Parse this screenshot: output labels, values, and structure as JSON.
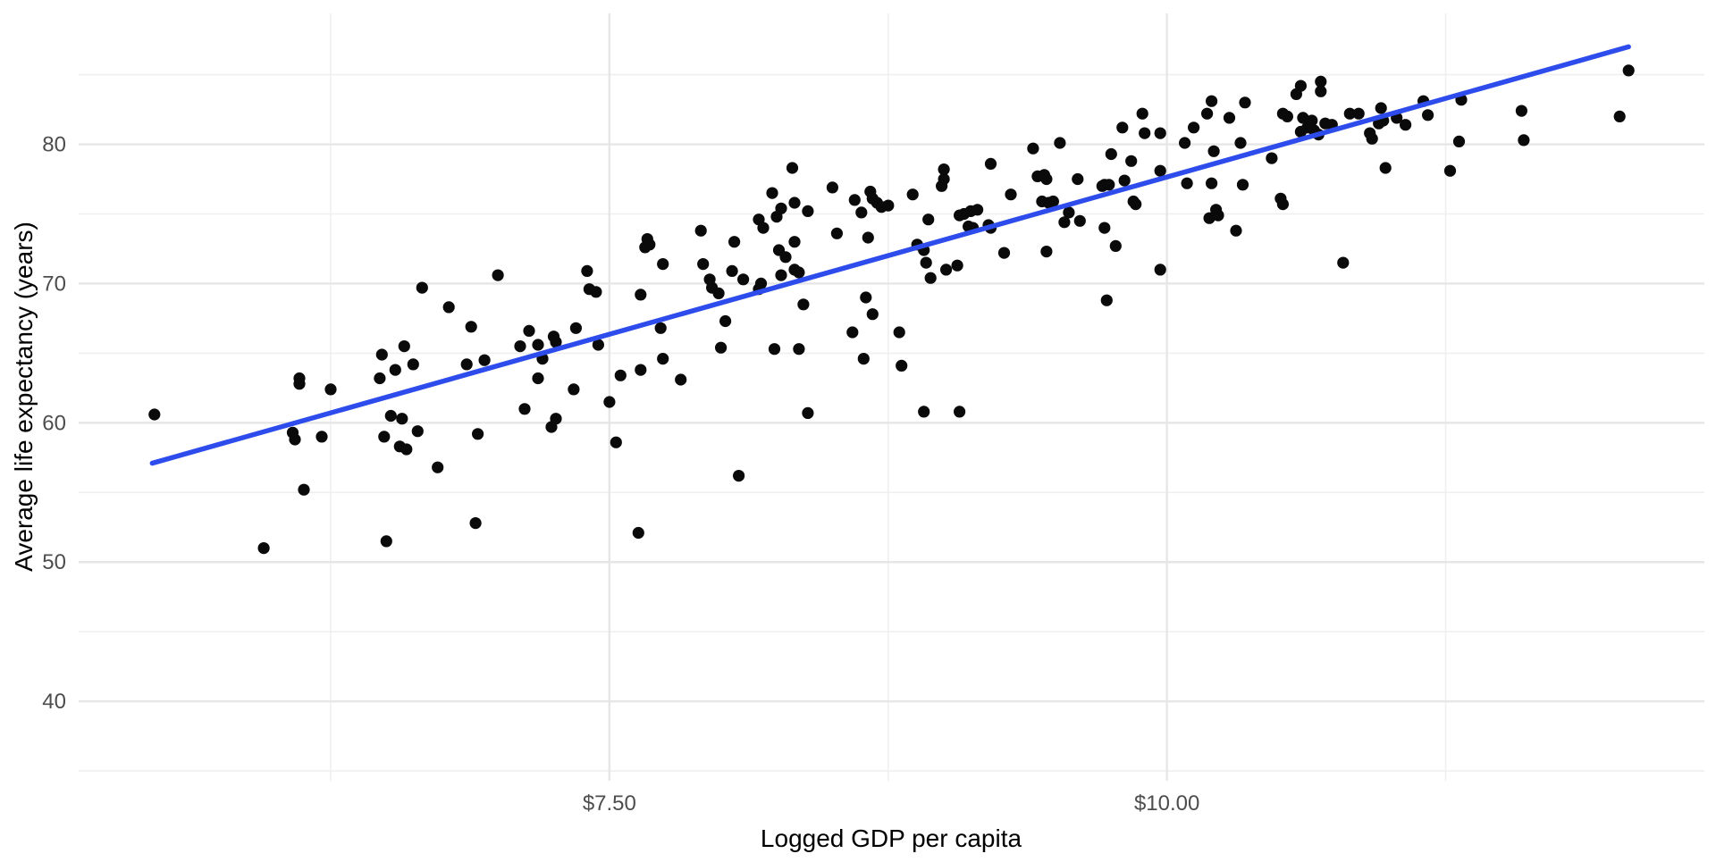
{
  "chart_data": {
    "type": "scatter",
    "title": "",
    "xlabel": "Logged GDP per capita",
    "ylabel": "Average life expectancy (years)",
    "x_domain": [
      5.12,
      12.41
    ],
    "y_domain": [
      34.3,
      89.4
    ],
    "x_ticks": [
      {
        "value": 7.5,
        "label": "$7.50"
      },
      {
        "value": 10.0,
        "label": "$10.00"
      }
    ],
    "x_minor_ticks": [
      6.25,
      8.75,
      11.25
    ],
    "y_ticks": [
      {
        "value": 40,
        "label": "40"
      },
      {
        "value": 50,
        "label": "50"
      },
      {
        "value": 60,
        "label": "60"
      },
      {
        "value": 70,
        "label": "70"
      },
      {
        "value": 80,
        "label": "80"
      }
    ],
    "y_minor_ticks": [
      35,
      45,
      55,
      65,
      75,
      85
    ],
    "grid": true,
    "legend_position": "none",
    "trend_line": {
      "type": "linear",
      "x1": 5.45,
      "y1": 57.1,
      "x2": 12.07,
      "y2": 87.0
    },
    "points": [
      [
        7.0,
        70.6
      ],
      [
        6.66,
        69.7
      ],
      [
        6.78,
        68.3
      ],
      [
        6.88,
        66.9
      ],
      [
        6.58,
        65.5
      ],
      [
        6.48,
        64.9
      ],
      [
        6.62,
        64.2
      ],
      [
        6.54,
        63.8
      ],
      [
        6.86,
        64.2
      ],
      [
        6.94,
        64.5
      ],
      [
        6.47,
        63.2
      ],
      [
        6.11,
        63.2
      ],
      [
        6.11,
        62.8
      ],
      [
        6.25,
        62.4
      ],
      [
        5.46,
        60.6
      ],
      [
        6.52,
        60.5
      ],
      [
        6.57,
        60.3
      ],
      [
        6.08,
        59.3
      ],
      [
        6.09,
        58.8
      ],
      [
        6.21,
        59.0
      ],
      [
        6.64,
        59.4
      ],
      [
        6.49,
        59.0
      ],
      [
        6.56,
        58.3
      ],
      [
        6.59,
        58.1
      ],
      [
        6.91,
        59.2
      ],
      [
        6.73,
        56.8
      ],
      [
        6.13,
        55.2
      ],
      [
        6.9,
        52.8
      ],
      [
        6.5,
        51.5
      ],
      [
        5.95,
        51.0
      ],
      [
        8.32,
        78.3
      ],
      [
        8.23,
        76.5
      ],
      [
        8.5,
        76.9
      ],
      [
        8.33,
        75.8
      ],
      [
        8.67,
        76.6
      ],
      [
        8.68,
        76.1
      ],
      [
        8.6,
        76.0
      ],
      [
        8.7,
        75.8
      ],
      [
        8.72,
        75.5
      ],
      [
        8.75,
        75.6
      ],
      [
        8.27,
        75.4
      ],
      [
        8.25,
        74.8
      ],
      [
        8.63,
        75.1
      ],
      [
        8.39,
        75.2
      ],
      [
        8.17,
        74.6
      ],
      [
        8.19,
        74.0
      ],
      [
        7.91,
        73.8
      ],
      [
        8.06,
        73.0
      ],
      [
        7.67,
        73.2
      ],
      [
        7.68,
        72.8
      ],
      [
        7.66,
        72.6
      ],
      [
        8.52,
        73.6
      ],
      [
        8.66,
        73.3
      ],
      [
        8.33,
        73.0
      ],
      [
        8.26,
        72.4
      ],
      [
        8.29,
        71.9
      ],
      [
        8.27,
        70.6
      ],
      [
        8.33,
        71.0
      ],
      [
        8.35,
        70.8
      ],
      [
        7.74,
        71.4
      ],
      [
        7.92,
        71.4
      ],
      [
        8.05,
        70.9
      ],
      [
        8.1,
        70.3
      ],
      [
        7.95,
        70.3
      ],
      [
        7.96,
        69.7
      ],
      [
        7.99,
        69.3
      ],
      [
        8.18,
        70.0
      ],
      [
        8.17,
        69.6
      ],
      [
        7.4,
        70.9
      ],
      [
        7.41,
        69.6
      ],
      [
        7.44,
        69.4
      ],
      [
        7.64,
        69.2
      ],
      [
        7.73,
        66.8
      ],
      [
        8.02,
        67.3
      ],
      [
        8.37,
        68.5
      ],
      [
        8.65,
        69.0
      ],
      [
        8.68,
        67.8
      ],
      [
        8.59,
        66.5
      ],
      [
        8.8,
        66.5
      ],
      [
        8.81,
        64.1
      ],
      [
        7.14,
        66.6
      ],
      [
        7.1,
        65.5
      ],
      [
        7.18,
        65.6
      ],
      [
        7.25,
        66.2
      ],
      [
        7.26,
        65.8
      ],
      [
        7.35,
        66.8
      ],
      [
        7.2,
        64.6
      ],
      [
        7.45,
        65.6
      ],
      [
        7.74,
        64.6
      ],
      [
        8.0,
        65.4
      ],
      [
        8.24,
        65.3
      ],
      [
        8.35,
        65.3
      ],
      [
        8.64,
        64.6
      ],
      [
        7.18,
        63.2
      ],
      [
        7.34,
        62.4
      ],
      [
        7.55,
        63.4
      ],
      [
        7.64,
        63.8
      ],
      [
        7.82,
        63.1
      ],
      [
        7.5,
        61.5
      ],
      [
        7.12,
        61.0
      ],
      [
        7.26,
        60.3
      ],
      [
        7.24,
        59.7
      ],
      [
        8.39,
        60.7
      ],
      [
        7.53,
        58.6
      ],
      [
        8.08,
        56.2
      ],
      [
        10.6,
        84.2
      ],
      [
        10.58,
        83.6
      ],
      [
        10.2,
        83.1
      ],
      [
        10.35,
        83.0
      ],
      [
        10.18,
        82.2
      ],
      [
        9.89,
        82.2
      ],
      [
        10.28,
        81.9
      ],
      [
        10.52,
        82.2
      ],
      [
        10.54,
        82.0
      ],
      [
        9.8,
        81.2
      ],
      [
        9.9,
        80.8
      ],
      [
        9.97,
        80.8
      ],
      [
        10.12,
        81.2
      ],
      [
        10.61,
        81.9
      ],
      [
        10.08,
        80.1
      ],
      [
        10.33,
        80.1
      ],
      [
        9.4,
        79.7
      ],
      [
        9.52,
        80.1
      ],
      [
        9.75,
        79.3
      ],
      [
        10.21,
        79.5
      ],
      [
        10.47,
        79.0
      ],
      [
        9.84,
        78.8
      ],
      [
        9.21,
        78.6
      ],
      [
        9.0,
        78.2
      ],
      [
        9.0,
        77.5
      ],
      [
        8.99,
        77.0
      ],
      [
        9.97,
        78.1
      ],
      [
        9.81,
        77.4
      ],
      [
        9.42,
        77.7
      ],
      [
        9.45,
        77.8
      ],
      [
        9.46,
        77.5
      ],
      [
        9.6,
        77.5
      ],
      [
        9.71,
        77.0
      ],
      [
        9.72,
        77.1
      ],
      [
        9.74,
        77.1
      ],
      [
        8.86,
        76.4
      ],
      [
        9.3,
        76.4
      ],
      [
        10.09,
        77.2
      ],
      [
        10.2,
        77.2
      ],
      [
        10.34,
        77.1
      ],
      [
        9.85,
        75.9
      ],
      [
        9.86,
        75.7
      ],
      [
        9.44,
        75.9
      ],
      [
        9.47,
        75.8
      ],
      [
        9.49,
        75.9
      ],
      [
        10.22,
        75.3
      ],
      [
        10.19,
        74.7
      ],
      [
        10.23,
        74.9
      ],
      [
        8.93,
        74.6
      ],
      [
        9.07,
        74.9
      ],
      [
        9.09,
        75.0
      ],
      [
        9.12,
        75.2
      ],
      [
        9.15,
        75.3
      ],
      [
        9.11,
        74.1
      ],
      [
        9.13,
        74.0
      ],
      [
        9.2,
        74.2
      ],
      [
        9.21,
        74.0
      ],
      [
        10.31,
        73.8
      ],
      [
        9.54,
        74.4
      ],
      [
        9.61,
        74.5
      ],
      [
        9.56,
        75.1
      ],
      [
        9.72,
        74.0
      ],
      [
        9.77,
        72.7
      ],
      [
        8.88,
        72.8
      ],
      [
        8.91,
        72.4
      ],
      [
        8.92,
        71.5
      ],
      [
        8.94,
        70.4
      ],
      [
        9.01,
        71.0
      ],
      [
        9.06,
        71.3
      ],
      [
        9.27,
        72.2
      ],
      [
        9.46,
        72.3
      ],
      [
        9.97,
        71.0
      ],
      [
        9.73,
        68.8
      ],
      [
        8.91,
        60.8
      ],
      [
        9.07,
        60.8
      ],
      [
        12.07,
        85.3
      ],
      [
        10.82,
        82.2
      ],
      [
        10.86,
        82.2
      ],
      [
        10.96,
        82.6
      ],
      [
        10.95,
        81.5
      ],
      [
        10.97,
        81.7
      ],
      [
        10.91,
        80.8
      ],
      [
        10.92,
        80.4
      ],
      [
        11.03,
        81.9
      ],
      [
        11.07,
        81.4
      ],
      [
        11.15,
        83.1
      ],
      [
        11.17,
        82.1
      ],
      [
        11.32,
        83.2
      ],
      [
        11.31,
        80.2
      ],
      [
        11.59,
        82.4
      ],
      [
        11.6,
        80.3
      ],
      [
        12.03,
        82.0
      ],
      [
        10.98,
        78.3
      ],
      [
        11.27,
        78.1
      ],
      [
        10.51,
        76.1
      ],
      [
        10.52,
        75.7
      ],
      [
        10.79,
        71.5
      ],
      [
        7.63,
        52.1
      ],
      [
        10.63,
        81.2
      ],
      [
        10.66,
        81.0
      ],
      [
        10.6,
        80.9
      ],
      [
        10.68,
        80.7
      ],
      [
        10.71,
        81.5
      ],
      [
        10.74,
        81.4
      ],
      [
        10.65,
        81.7
      ],
      [
        10.69,
        84.5
      ],
      [
        10.69,
        83.8
      ]
    ]
  },
  "style": {
    "background_color": "#ffffff",
    "point_color": "#0a0a0a",
    "trend_color": "#2d4ceb",
    "grid_major_color": "#e6e6e6",
    "grid_minor_color": "#efefef",
    "tick_label_color": "#4d4d4d",
    "axis_title_color": "#000000"
  }
}
